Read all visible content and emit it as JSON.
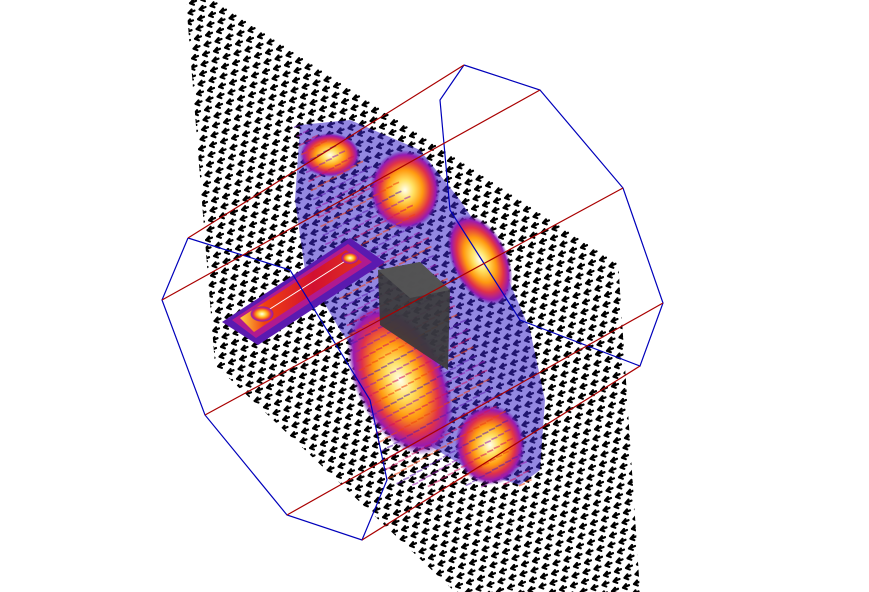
{
  "scene": {
    "background": "#ffffff",
    "arrow_color": "#000000",
    "bounding_prism_edge_color": "#0000bb",
    "bounding_prism_axis_color": "#aa0000",
    "heatmap_colormap": [
      "#2a1a8a",
      "#5a1ab0",
      "#9a1ab0",
      "#d21060",
      "#f04010",
      "#ff9a10",
      "#ffe060",
      "#fffff0"
    ],
    "block_color": "#3a3a3a",
    "icons": [
      "vector-field",
      "cutting-plane",
      "heatmap",
      "bounding-prism",
      "conductor-block"
    ]
  }
}
